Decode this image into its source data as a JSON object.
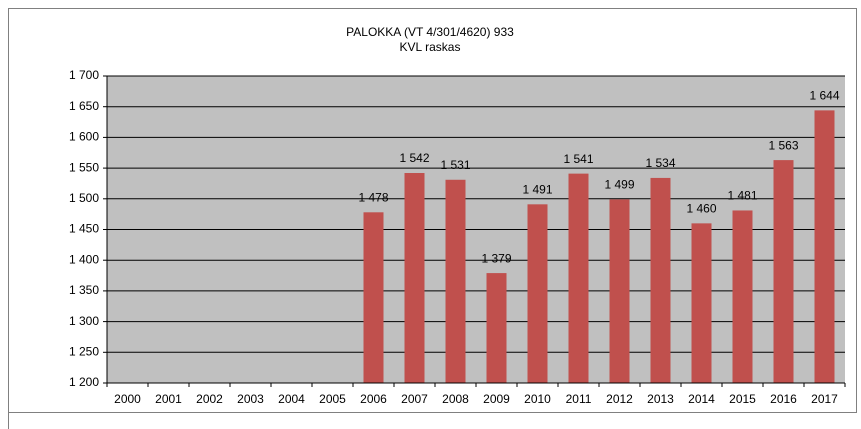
{
  "chart_data": {
    "type": "bar",
    "title": "PALOKKA (VT 4/301/4620) 933",
    "subtitle": "KVL raskas",
    "categories": [
      "2000",
      "2001",
      "2002",
      "2003",
      "2004",
      "2005",
      "2006",
      "2007",
      "2008",
      "2009",
      "2010",
      "2011",
      "2012",
      "2013",
      "2014",
      "2015",
      "2016",
      "2017"
    ],
    "values": [
      null,
      null,
      null,
      null,
      null,
      null,
      1478,
      1542,
      1531,
      1379,
      1491,
      1541,
      1499,
      1534,
      1460,
      1481,
      1563,
      1644
    ],
    "value_labels": [
      null,
      null,
      null,
      null,
      null,
      null,
      "1 478",
      "1 542",
      "1 531",
      "1 379",
      "1 491",
      "1 541",
      "1 499",
      "1 534",
      "1 460",
      "1 481",
      "1 563",
      "1 644"
    ],
    "color": "#c0504d",
    "ylim": [
      1200,
      1700
    ],
    "yticks": [
      {
        "value": 1200,
        "label": "1 200"
      },
      {
        "value": 1250,
        "label": "1 250"
      },
      {
        "value": 1300,
        "label": "1 300"
      },
      {
        "value": 1350,
        "label": "1 350"
      },
      {
        "value": 1400,
        "label": "1 400"
      },
      {
        "value": 1450,
        "label": "1 450"
      },
      {
        "value": 1500,
        "label": "1 500"
      },
      {
        "value": 1550,
        "label": "1 550"
      },
      {
        "value": 1600,
        "label": "1 600"
      },
      {
        "value": 1650,
        "label": "1 650"
      },
      {
        "value": 1700,
        "label": "1 700"
      }
    ],
    "grid": true
  }
}
